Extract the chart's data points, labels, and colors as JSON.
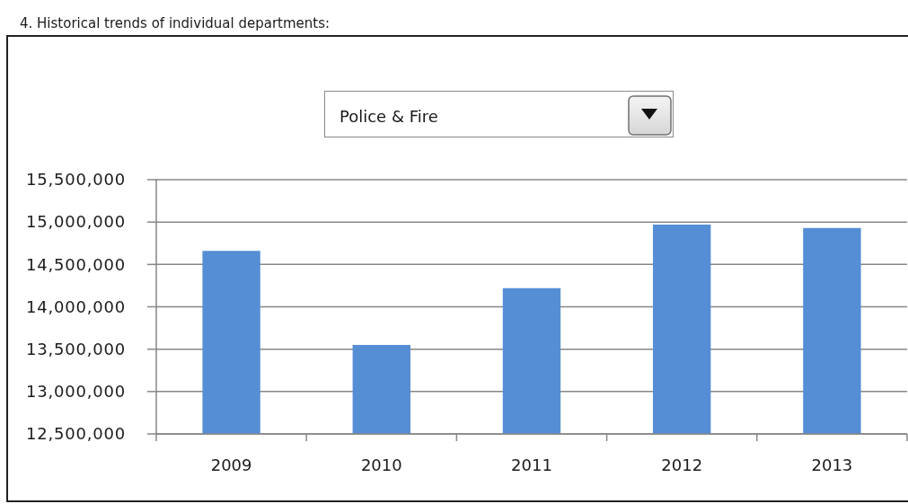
{
  "chart_data": {
    "type": "bar",
    "title": "4. Historical trends of individual departments:",
    "subtitle": "Police & Fire",
    "categories": [
      "2009",
      "2010",
      "2011",
      "2012",
      "2013"
    ],
    "values": [
      14660000,
      13550000,
      14220000,
      14970000,
      14930000
    ],
    "color": "#558ed5",
    "ylim": [
      12500000,
      15500000
    ],
    "yticks": [
      {
        "value": 12500000,
        "label": "12,500,000"
      },
      {
        "value": 13000000,
        "label": "13,000,000"
      },
      {
        "value": 13500000,
        "label": "13,500,000"
      },
      {
        "value": 14000000,
        "label": "14,000,000"
      },
      {
        "value": 14500000,
        "label": "14,500,000"
      },
      {
        "value": 15000000,
        "label": "15,000,000"
      },
      {
        "value": 15500000,
        "label": "15,500,000"
      }
    ],
    "grid": "y"
  }
}
